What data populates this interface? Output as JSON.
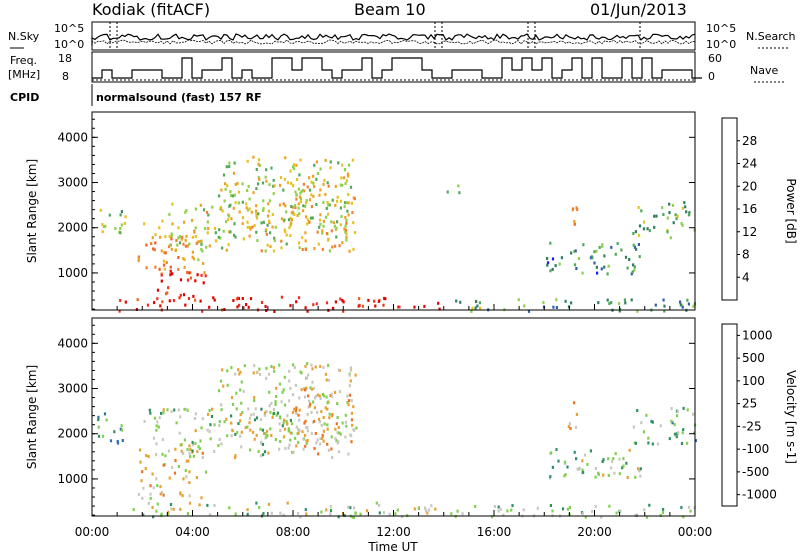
{
  "header": {
    "radar": "Kodiak (fitACF)",
    "beam": "Beam 10",
    "date": "01/Jun/2013",
    "cpid_label": "CPID",
    "cpid_value": "normalsound (fast) 157 RF"
  },
  "status_panel": {
    "nsky_label": "N.Sky",
    "nsearch_label": "N.Search",
    "freq_label_1": "Freq.",
    "freq_label_2": "[MHz]",
    "nave_label": "Nave",
    "noise_ticks_left": [
      "10^5",
      "10^0"
    ],
    "noise_ticks_right": [
      "10^5",
      "10^0"
    ],
    "freq_ticks": [
      "18",
      "8"
    ],
    "nave_ticks": [
      "60",
      "0"
    ]
  },
  "chart_data": [
    {
      "type": "heatmap",
      "title": "",
      "ylabel": "Slant Range [km]",
      "xlabel": "",
      "ylim": [
        180,
        4560
      ],
      "yticks": [
        "1000",
        "2000",
        "3000",
        "4000"
      ],
      "xlim_hours": [
        0,
        24
      ],
      "colorbar": {
        "label": "Power [dB]",
        "ticks": [
          "4",
          "8",
          "12",
          "16",
          "20",
          "24",
          "28"
        ],
        "colors": [
          "#1a1aff",
          "#2e5fb5",
          "#2f7f5f",
          "#4fa85a",
          "#8fd04c",
          "#e8c020",
          "#f0a020",
          "#f08030",
          "#f06020",
          "#ee3020",
          "#e00000"
        ]
      },
      "echo_regions": [
        {
          "t0": 0.1,
          "t1": 1.3,
          "r0": 1800,
          "r1": 2500,
          "level": 0.4
        },
        {
          "t0": 1.8,
          "t1": 4.5,
          "r0": 1000,
          "r1": 2200,
          "level": 0.6
        },
        {
          "t0": 2.5,
          "t1": 4.5,
          "r0": 500,
          "r1": 1100,
          "level": 0.9
        },
        {
          "t0": 3.0,
          "t1": 8.0,
          "r0": 1500,
          "r1": 2600,
          "level": 0.5
        },
        {
          "t0": 5.0,
          "t1": 10.5,
          "r0": 1800,
          "r1": 3600,
          "level": 0.45
        },
        {
          "t0": 8.0,
          "t1": 10.5,
          "r0": 1500,
          "r1": 3100,
          "level": 0.55
        },
        {
          "t0": 1.0,
          "t1": 13.8,
          "r0": 180,
          "r1": 500,
          "level": 0.95
        },
        {
          "t0": 14.0,
          "t1": 24.0,
          "r0": 180,
          "r1": 450,
          "level": 0.3
        },
        {
          "t0": 14.0,
          "t1": 14.8,
          "r0": 2800,
          "r1": 3000,
          "level": 0.35
        },
        {
          "t0": 18.0,
          "t1": 22.0,
          "r0": 1000,
          "r1": 1700,
          "level": 0.25
        },
        {
          "t0": 18.9,
          "t1": 19.4,
          "r0": 2100,
          "r1": 2800,
          "level": 0.7
        },
        {
          "t0": 21.5,
          "t1": 24.0,
          "r0": 1800,
          "r1": 2600,
          "level": 0.35
        }
      ]
    },
    {
      "type": "heatmap",
      "title": "",
      "ylabel": "Slant Range [km]",
      "xlabel": "Time UT",
      "ylim": [
        180,
        4560
      ],
      "yticks": [
        "1000",
        "2000",
        "3000",
        "4000"
      ],
      "xticks": [
        "00:00",
        "04:00",
        "08:00",
        "12:00",
        "16:00",
        "20:00",
        "00:00"
      ],
      "xlim_hours": [
        0,
        24
      ],
      "colorbar": {
        "label": "Velocity [m s-1]",
        "ticks": [
          "1000",
          "500",
          "100",
          "25",
          "-25",
          "-100",
          "-500",
          "-1000"
        ],
        "colors": [
          "#2030c0",
          "#3070b0",
          "#2f8f5f",
          "#7fd050",
          "#c8c8c0",
          "#e8a030",
          "#f07020",
          "#e00000"
        ]
      },
      "echo_regions": [
        {
          "t0": 0.1,
          "t1": 1.3,
          "r0": 1800,
          "r1": 2500,
          "level": 0.3
        },
        {
          "t0": 1.8,
          "t1": 4.5,
          "r0": 600,
          "r1": 1700,
          "level": 0.6
        },
        {
          "t0": 2.0,
          "t1": 8.0,
          "r0": 1500,
          "r1": 2600,
          "level": 0.5
        },
        {
          "t0": 5.0,
          "t1": 10.5,
          "r0": 1800,
          "r1": 3600,
          "level": 0.55
        },
        {
          "t0": 8.0,
          "t1": 10.5,
          "r0": 1500,
          "r1": 3100,
          "level": 0.65
        },
        {
          "t0": 1.0,
          "t1": 13.8,
          "r0": 180,
          "r1": 500,
          "level": 0.5
        },
        {
          "t0": 14.0,
          "t1": 24.0,
          "r0": 180,
          "r1": 450,
          "level": 0.45
        },
        {
          "t0": 18.0,
          "t1": 22.0,
          "r0": 1000,
          "r1": 1700,
          "level": 0.48
        },
        {
          "t0": 18.9,
          "t1": 19.4,
          "r0": 2100,
          "r1": 2800,
          "level": 0.7
        },
        {
          "t0": 21.5,
          "t1": 24.0,
          "r0": 1800,
          "r1": 2600,
          "level": 0.4
        }
      ]
    }
  ]
}
